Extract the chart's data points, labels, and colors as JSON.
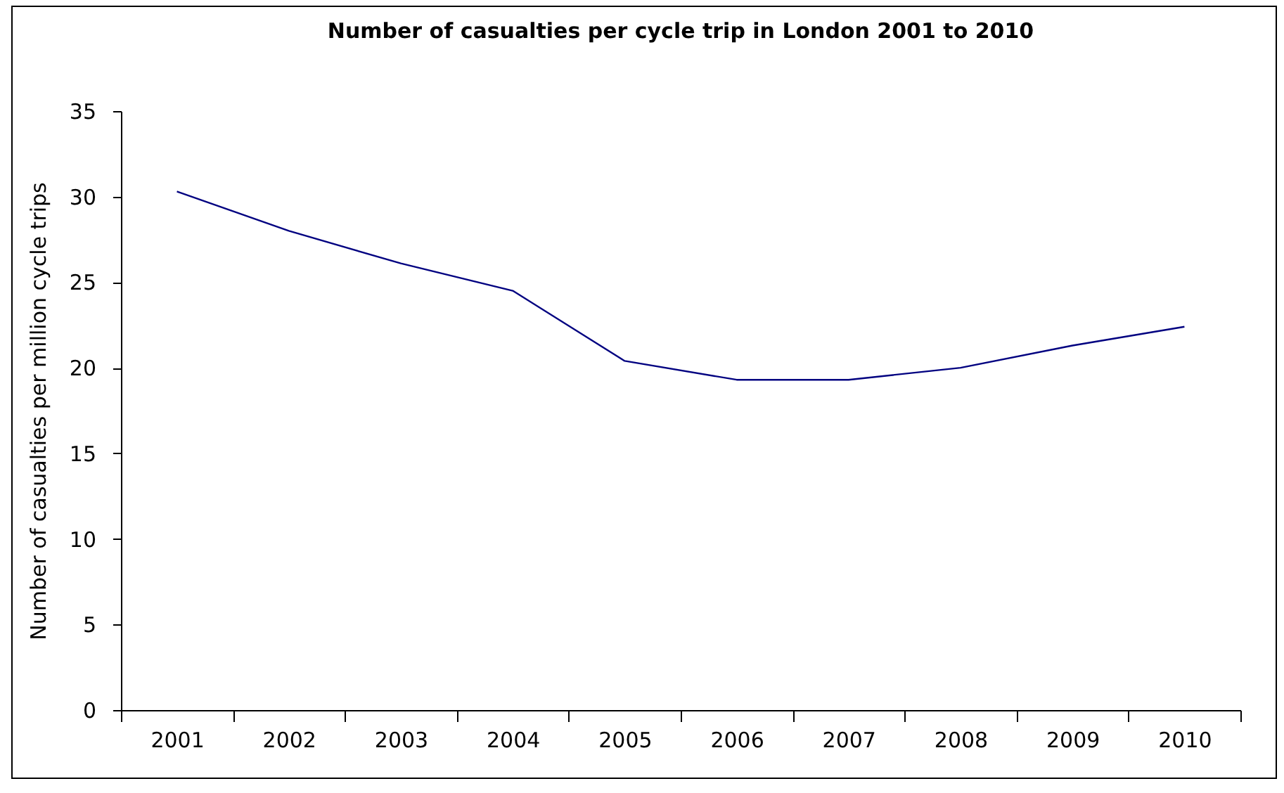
{
  "chart_data": {
    "type": "line",
    "title": "Number of casualties per cycle trip in London 2001 to 2010",
    "ylabel": "Number of casualties per million cycle trips",
    "categories": [
      "2001",
      "2002",
      "2003",
      "2004",
      "2005",
      "2006",
      "2007",
      "2008",
      "2009",
      "2010"
    ],
    "series": [
      {
        "color": "#000080",
        "values": [
          30.3,
          28,
          26.1,
          24.5,
          20.4,
          19.3,
          19.3,
          20,
          21.3,
          22.4
        ]
      }
    ],
    "ylim": [
      0,
      35
    ],
    "yticks": [
      0,
      5,
      10,
      15,
      20,
      25,
      30,
      35
    ],
    "grid": false,
    "legend": false
  }
}
